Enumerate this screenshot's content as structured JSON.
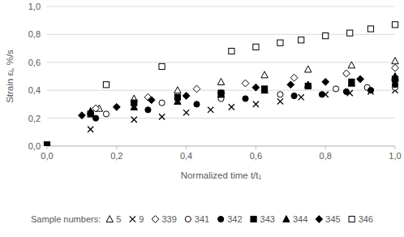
{
  "chart_data": {
    "type": "scatter",
    "x_label": "Normalized time t/t₁",
    "y_label": "Strain εᵢ, %/s",
    "legend_title": "Sample numbers:",
    "legend": "bottom",
    "grid": true,
    "xlim": [
      0,
      1
    ],
    "ylim": [
      0,
      1
    ],
    "xticks": [
      {
        "value": 0,
        "label": "0,0"
      },
      {
        "value": 0.2,
        "label": "0,2"
      },
      {
        "value": 0.4,
        "label": "0,4"
      },
      {
        "value": 0.6,
        "label": "0,6"
      },
      {
        "value": 0.8,
        "label": "0,8"
      },
      {
        "value": 1,
        "label": "1,0"
      }
    ],
    "yticks": [
      {
        "value": 0,
        "label": "0,0"
      },
      {
        "value": 0.2,
        "label": "0,2"
      },
      {
        "value": 0.4,
        "label": "0,4"
      },
      {
        "value": 0.6,
        "label": "0,6"
      },
      {
        "value": 0.8,
        "label": "0,8"
      },
      {
        "value": 1,
        "label": "1,0"
      }
    ],
    "series": [
      {
        "name": "5",
        "color": "#000000",
        "marker": "triangle-open",
        "x": [
          0.15,
          0.25,
          0.375,
          0.5,
          0.625,
          0.75,
          0.875,
          1.0
        ],
        "values": [
          0.27,
          0.34,
          0.4,
          0.46,
          0.51,
          0.55,
          0.58,
          0.61
        ]
      },
      {
        "name": "9",
        "color": "#000000",
        "marker": "x",
        "x": [
          0.125,
          0.25,
          0.33,
          0.4,
          0.47,
          0.53,
          0.6,
          0.67,
          0.73,
          0.8,
          0.87,
          0.93,
          1.0
        ],
        "values": [
          0.12,
          0.19,
          0.21,
          0.24,
          0.26,
          0.28,
          0.3,
          0.32,
          0.35,
          0.37,
          0.38,
          0.39,
          0.4
        ]
      },
      {
        "name": "339",
        "color": "#000000",
        "marker": "diamond-open",
        "x": [
          0.14,
          0.29,
          0.43,
          0.57,
          0.71,
          0.86,
          1.0
        ],
        "values": [
          0.27,
          0.35,
          0.41,
          0.45,
          0.49,
          0.52,
          0.56
        ]
      },
      {
        "name": "341",
        "color": "#000000",
        "marker": "circle-open",
        "x": [
          0.17,
          0.33,
          0.5,
          0.67,
          0.83,
          0.92,
          1.0
        ],
        "values": [
          0.23,
          0.31,
          0.34,
          0.37,
          0.41,
          0.42,
          0.42
        ]
      },
      {
        "name": "342",
        "color": "#000000",
        "marker": "circle",
        "x": [
          0.14,
          0.29,
          0.43,
          0.57,
          0.71,
          0.79,
          0.86,
          0.93,
          1.0
        ],
        "values": [
          0.2,
          0.26,
          0.3,
          0.34,
          0.36,
          0.37,
          0.39,
          0.4,
          0.44
        ]
      },
      {
        "name": "343",
        "color": "#000000",
        "marker": "square",
        "x": [
          0,
          0.125,
          0.25,
          0.375,
          0.5,
          0.625,
          0.75,
          0.875,
          1.0
        ],
        "values": [
          0.01,
          0.23,
          0.31,
          0.35,
          0.38,
          0.41,
          0.43,
          0.46,
          0.48
        ]
      },
      {
        "name": "344",
        "color": "#000000",
        "marker": "triangle",
        "x": [
          0.125,
          0.25,
          0.375,
          0.5,
          0.625,
          0.75,
          0.875,
          1.0
        ],
        "values": [
          0.25,
          0.28,
          0.32,
          0.37,
          0.4,
          0.44,
          0.45,
          0.5
        ]
      },
      {
        "name": "345",
        "color": "#000000",
        "marker": "diamond",
        "x": [
          0.1,
          0.2,
          0.3,
          0.4,
          0.5,
          0.6,
          0.7,
          0.8,
          0.9,
          1.0
        ],
        "values": [
          0.22,
          0.28,
          0.33,
          0.36,
          0.38,
          0.42,
          0.44,
          0.46,
          0.48,
          0.47
        ]
      },
      {
        "name": "346",
        "color": "#000000",
        "marker": "square-open",
        "x": [
          0.17,
          0.33,
          0.53,
          0.6,
          0.67,
          0.73,
          0.8,
          0.87,
          0.93,
          1.0
        ],
        "values": [
          0.44,
          0.57,
          0.68,
          0.71,
          0.74,
          0.76,
          0.79,
          0.81,
          0.84,
          0.87
        ]
      }
    ]
  }
}
